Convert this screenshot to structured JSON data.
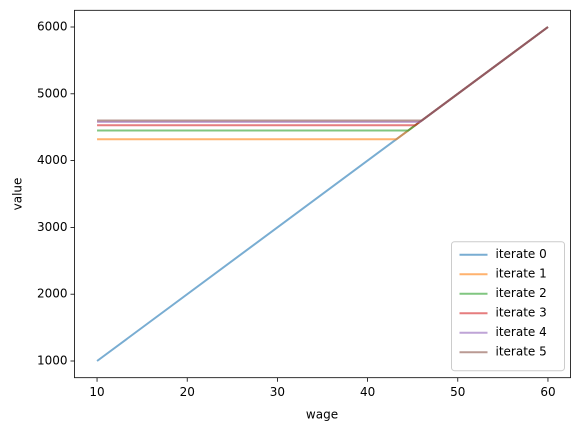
{
  "chart_data": {
    "type": "line",
    "x_label": "wage",
    "y_label": "value",
    "x": [
      10,
      43.2,
      44.5,
      45.3,
      45.8,
      46,
      60
    ],
    "series": [
      {
        "name": "iterate 0",
        "color": "#1f77b4",
        "values": [
          1000,
          4320,
          4450,
          4530,
          4580,
          4600,
          6000
        ]
      },
      {
        "name": "iterate 1",
        "color": "#ff7f0e",
        "values": [
          4320,
          4320,
          4450,
          4530,
          4580,
          4600,
          6000
        ]
      },
      {
        "name": "iterate 2",
        "color": "#2ca02c",
        "values": [
          4450,
          4450,
          4450,
          4530,
          4580,
          4600,
          6000
        ]
      },
      {
        "name": "iterate 3",
        "color": "#d62728",
        "values": [
          4530,
          4530,
          4530,
          4530,
          4580,
          4600,
          6000
        ]
      },
      {
        "name": "iterate 4",
        "color": "#9467bd",
        "values": [
          4580,
          4580,
          4580,
          4580,
          4580,
          4600,
          6000
        ]
      },
      {
        "name": "iterate 5",
        "color": "#8c564b",
        "values": [
          4600,
          4600,
          4600,
          4600,
          4600,
          4600,
          6000
        ]
      }
    ],
    "xlim": [
      7.5,
      62.5
    ],
    "xticks": [
      10,
      20,
      30,
      40,
      50,
      60
    ],
    "ylim": [
      750,
      6250
    ],
    "yticks": [
      1000,
      2000,
      3000,
      4000,
      5000,
      6000
    ],
    "grid": false,
    "legend": "lower right"
  }
}
